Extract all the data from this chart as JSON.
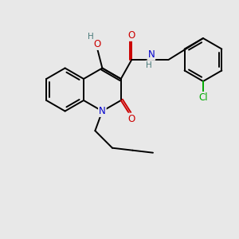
{
  "background_color": "#e8e8e8",
  "bond_color": "#000000",
  "N_color": "#0000cc",
  "O_color": "#cc0000",
  "Cl_color": "#00aa00",
  "H_color": "#4a7a7a",
  "bond_width": 1.4,
  "font_size_atom": 8.5,
  "title": "",
  "xlim": [
    0,
    10
  ],
  "ylim": [
    0,
    10
  ]
}
